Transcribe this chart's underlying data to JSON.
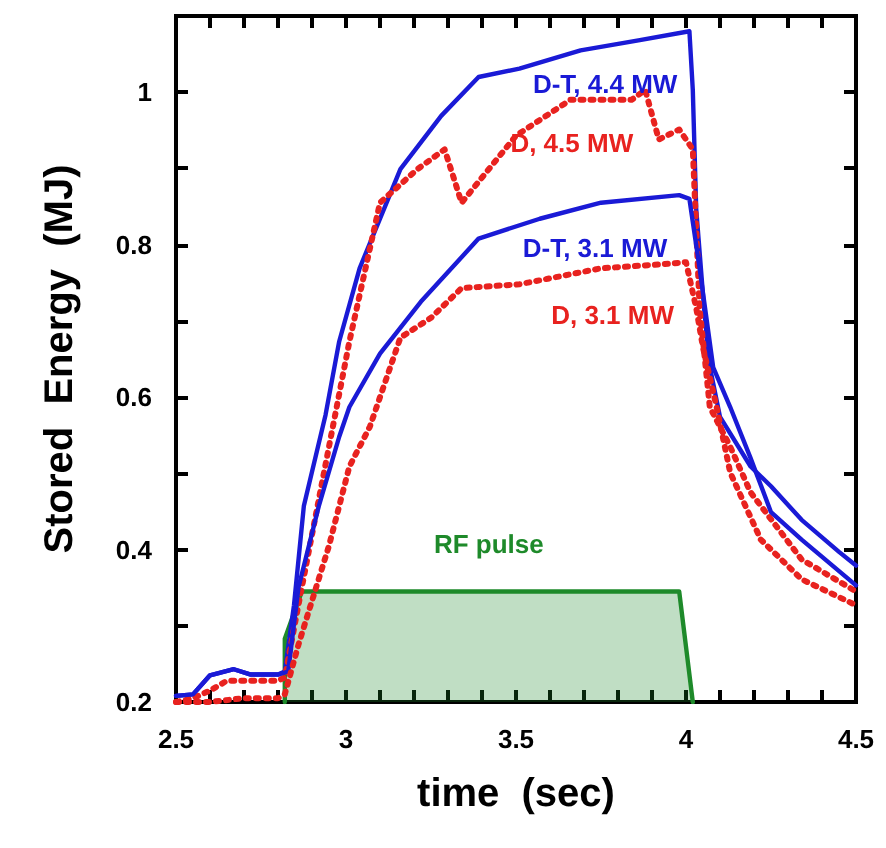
{
  "chart_data": {
    "type": "line",
    "xlabel": "time  (sec)",
    "ylabel": "Stored  Energy  (MJ)",
    "xlim": [
      2.5,
      4.5
    ],
    "ylim": [
      0.2,
      1.1
    ],
    "xticks": [
      {
        "value": 2.5,
        "label": "2.5"
      },
      {
        "value": 2.6,
        "label": null
      },
      {
        "value": 2.7,
        "label": null
      },
      {
        "value": 2.8,
        "label": null
      },
      {
        "value": 2.9,
        "label": null
      },
      {
        "value": 3,
        "label": "3"
      },
      {
        "value": 3.1,
        "label": null
      },
      {
        "value": 3.2,
        "label": null
      },
      {
        "value": 3.3,
        "label": null
      },
      {
        "value": 3.4,
        "label": null
      },
      {
        "value": 3.5,
        "label": "3.5"
      },
      {
        "value": 3.6,
        "label": null
      },
      {
        "value": 3.7,
        "label": null
      },
      {
        "value": 3.8,
        "label": null
      },
      {
        "value": 3.9,
        "label": null
      },
      {
        "value": 4,
        "label": "4"
      },
      {
        "value": 4.1,
        "label": null
      },
      {
        "value": 4.2,
        "label": null
      },
      {
        "value": 4.3,
        "label": null
      },
      {
        "value": 4.4,
        "label": null
      },
      {
        "value": 4.5,
        "label": "4.5"
      }
    ],
    "yticks": [
      {
        "value": 0.2,
        "label": "0.2"
      },
      {
        "value": 0.3,
        "label": null
      },
      {
        "value": 0.4,
        "label": "0.4"
      },
      {
        "value": 0.5,
        "label": null
      },
      {
        "value": 0.6,
        "label": "0.6"
      },
      {
        "value": 0.7,
        "label": null
      },
      {
        "value": 0.8,
        "label": "0.8"
      },
      {
        "value": 0.9,
        "label": null
      },
      {
        "value": 1,
        "label": "1"
      },
      {
        "value": 1.1,
        "label": null
      }
    ],
    "marker": "none",
    "series": [
      {
        "name": "D-T, 4.4 MW",
        "color": "#1a1ad6",
        "line_style": "solid",
        "x": [
          2.5,
          2.55,
          2.6,
          2.67,
          2.72,
          2.8,
          2.82,
          2.847,
          2.876,
          2.94,
          2.98,
          3.04,
          3.16,
          3.28,
          3.39,
          3.51,
          3.69,
          3.86,
          4.01,
          4.02,
          4.03,
          4.053,
          4.07,
          4.1,
          4.19,
          4.25,
          4.34,
          4.45,
          4.5
        ],
        "values": [
          0.208,
          0.21,
          0.235,
          0.243,
          0.236,
          0.236,
          0.24,
          0.327,
          0.457,
          0.577,
          0.673,
          0.769,
          0.899,
          0.969,
          1.02,
          1.031,
          1.055,
          1.068,
          1.08,
          1.003,
          0.847,
          0.717,
          0.64,
          0.574,
          0.509,
          0.483,
          0.439,
          0.397,
          0.379
        ]
      },
      {
        "name": "D, 4.5 MW",
        "color": "#e8221f",
        "line_style": "dotted",
        "x": [
          2.5,
          2.55,
          2.6,
          2.65,
          2.8,
          2.82,
          2.86,
          2.95,
          3.01,
          3.1,
          3.21,
          3.29,
          3.34,
          3.5,
          3.66,
          3.84,
          3.88,
          3.92,
          3.98,
          4.02,
          4.04,
          4.07,
          4.13,
          4.19,
          4.34,
          4.5
        ],
        "values": [
          0.2,
          0.205,
          0.215,
          0.228,
          0.228,
          0.232,
          0.327,
          0.535,
          0.673,
          0.855,
          0.899,
          0.925,
          0.855,
          0.943,
          0.99,
          0.99,
          1.003,
          0.938,
          0.951,
          0.925,
          0.717,
          0.587,
          0.535,
          0.475,
          0.387,
          0.345
        ]
      },
      {
        "name": "D-T, 3.1 MW",
        "color": "#1a1ad6",
        "line_style": "solid",
        "x": [
          2.5,
          2.55,
          2.6,
          2.67,
          2.72,
          2.8,
          2.83,
          2.86,
          2.92,
          2.98,
          3.01,
          3.1,
          3.22,
          3.39,
          3.57,
          3.75,
          3.98,
          4.01,
          4.04,
          4.08,
          4.13,
          4.19,
          4.25,
          4.34,
          4.5
        ],
        "values": [
          0.208,
          0.21,
          0.235,
          0.243,
          0.236,
          0.236,
          0.24,
          0.35,
          0.457,
          0.548,
          0.587,
          0.657,
          0.725,
          0.808,
          0.834,
          0.855,
          0.865,
          0.86,
          0.769,
          0.639,
          0.587,
          0.52,
          0.449,
          0.413,
          0.353
        ]
      },
      {
        "name": "D, 3.1 MW",
        "color": "#e8221f",
        "line_style": "dotted",
        "x": [
          2.5,
          2.6,
          2.7,
          2.8,
          2.82,
          2.86,
          2.95,
          3.01,
          3.07,
          3.16,
          3.25,
          3.34,
          3.51,
          3.75,
          3.92,
          4,
          4.03,
          4.05,
          4.09,
          4.13,
          4.22,
          4.34,
          4.5
        ],
        "values": [
          0.2,
          0.2,
          0.205,
          0.205,
          0.21,
          0.275,
          0.405,
          0.509,
          0.561,
          0.678,
          0.704,
          0.743,
          0.748,
          0.769,
          0.774,
          0.777,
          0.717,
          0.665,
          0.587,
          0.501,
          0.413,
          0.361,
          0.327
        ]
      },
      {
        "name": "RF pulse",
        "type": "area",
        "color": "#1e8a2a",
        "x": [
          2.82,
          2.82,
          2.87,
          3.98,
          4.02
        ],
        "values": [
          0.2,
          0.283,
          0.345,
          0.345,
          0.2
        ]
      }
    ]
  }
}
